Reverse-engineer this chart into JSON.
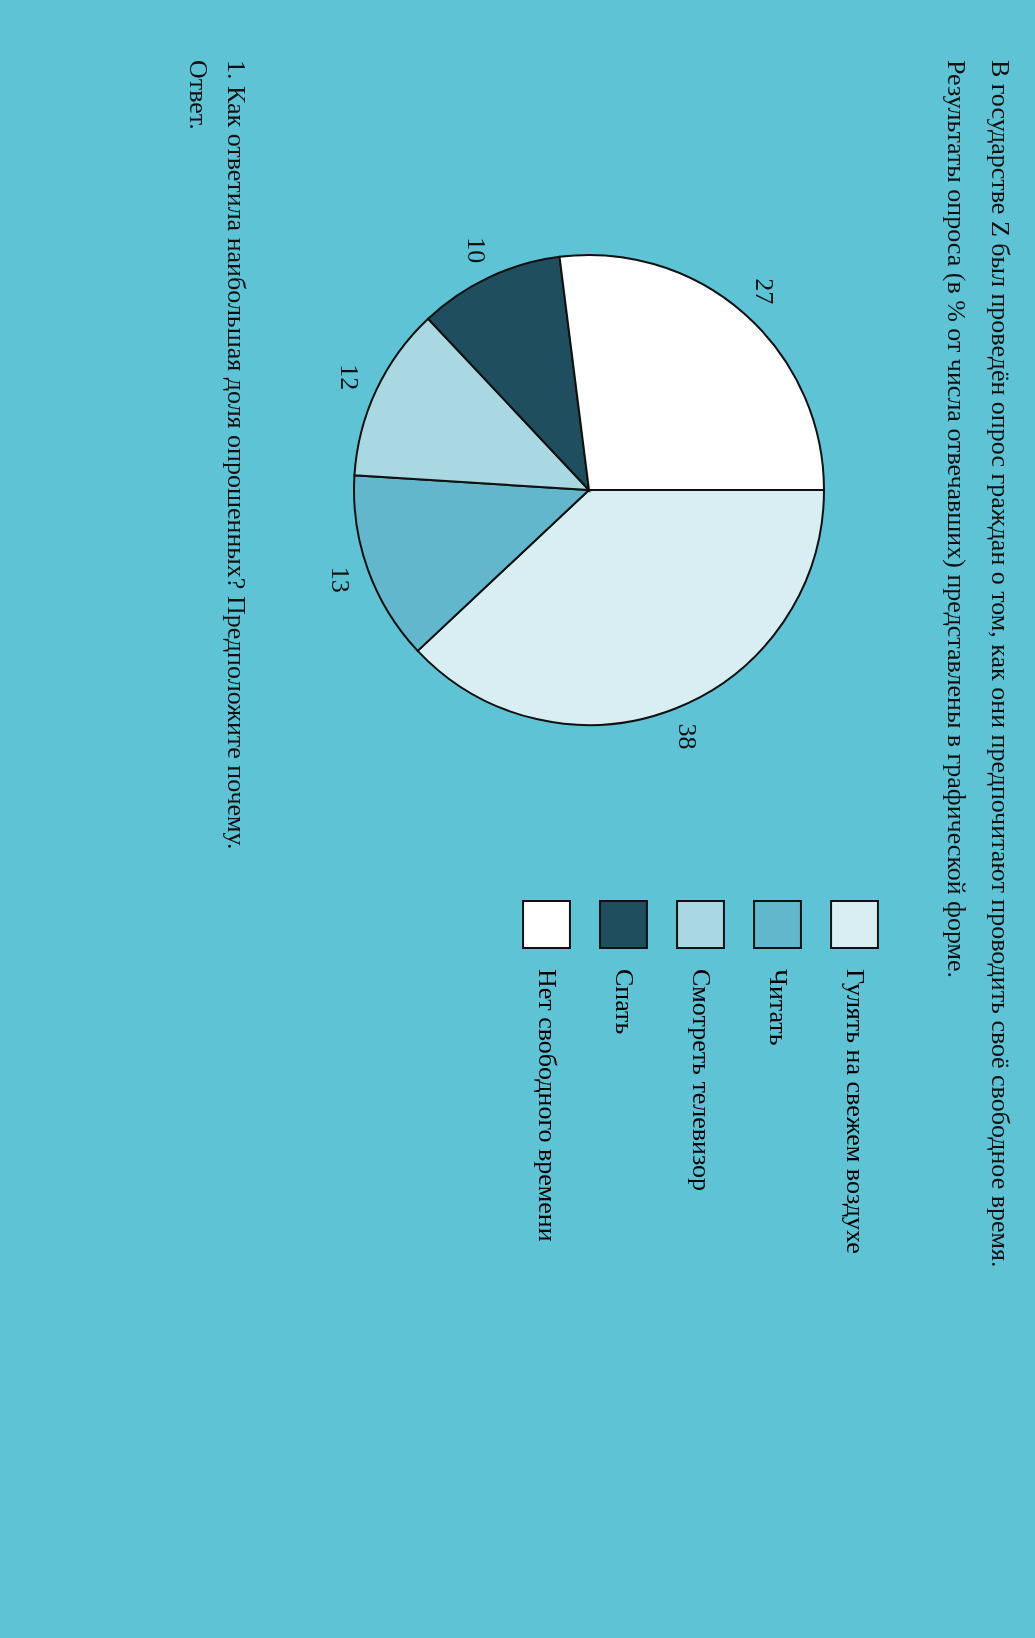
{
  "chart_data": {
    "type": "pie",
    "title": "В государстве Z был проведён опрос граждан о том, как они предпочитают проводить своё свободное время.",
    "subtitle": "Результаты опроса (в % от числа отвечавших) представлены в графической форме.",
    "categories": [
      "Гулять на свежем воздухе",
      "Читать",
      "Смотреть телевизор",
      "Спать",
      "Нет свободного времени"
    ],
    "values": [
      38,
      13,
      12,
      10,
      27
    ],
    "colors": [
      "#d9eef2",
      "#62b7cc",
      "#a9d7e2",
      "#1f4f5e",
      "#ffffff"
    ],
    "data_labels": true,
    "legend": "right",
    "annotations": [
      "1. Как ответила наибольшая доля опрошенных? Предположите почему.",
      "Ответ."
    ]
  }
}
